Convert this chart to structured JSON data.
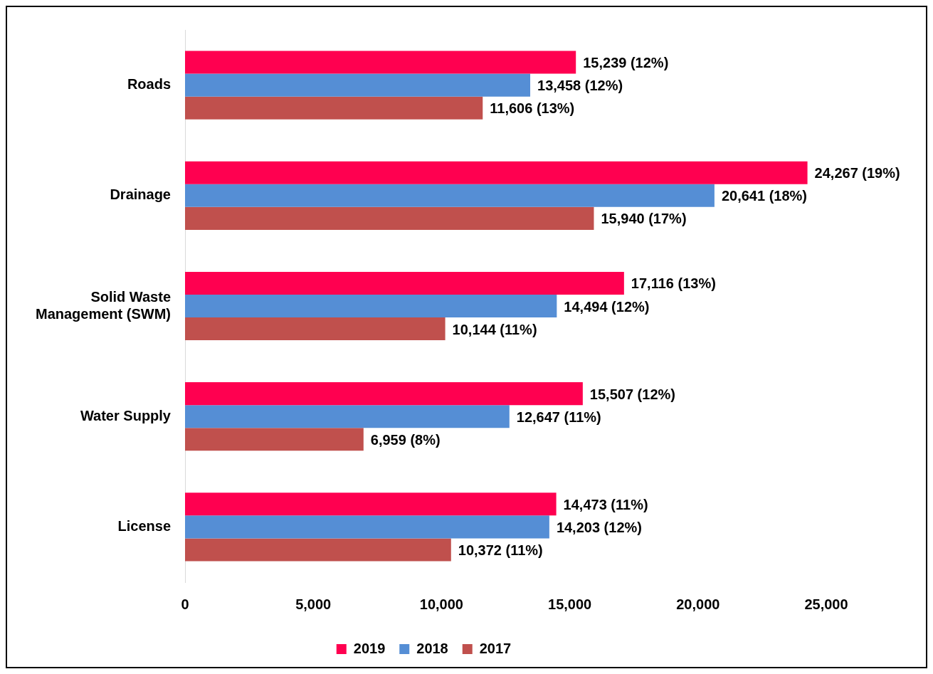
{
  "chart_data": {
    "type": "bar",
    "orientation": "horizontal",
    "categories": [
      "Roads",
      "Drainage",
      "Solid Waste Management (SWM)",
      "Water Supply",
      "License"
    ],
    "series": [
      {
        "name": "2019",
        "color": "#ff0050",
        "values": [
          15239,
          24267,
          17116,
          15507,
          14473
        ],
        "value_labels": [
          "15,239 (12%)",
          "24,267 (19%)",
          "17,116 (13%)",
          "15,507 (12%)",
          "14,473 (11%)"
        ]
      },
      {
        "name": "2018",
        "color": "#558ed5",
        "values": [
          13458,
          20641,
          14494,
          12647,
          14203
        ],
        "value_labels": [
          "13,458 (12%)",
          "20,641 (18%)",
          "14,494 (12%)",
          "12,647 (11%)",
          "14,203 (12%)"
        ]
      },
      {
        "name": "2017",
        "color": "#c0504d",
        "values": [
          11606,
          15940,
          10144,
          6959,
          10372
        ],
        "value_labels": [
          "11,606 (13%)",
          "15,940 (17%)",
          "10,144 (11%)",
          "6,959 (8%)",
          "10,372 (11%)"
        ]
      }
    ],
    "xlim": [
      0,
      25000
    ],
    "xticks": [
      {
        "value": 0,
        "label": "0"
      },
      {
        "value": 5000,
        "label": "5,000"
      },
      {
        "value": 10000,
        "label": "10,000"
      },
      {
        "value": 15000,
        "label": "15,000"
      },
      {
        "value": 20000,
        "label": "20,000"
      },
      {
        "value": 25000,
        "label": "25,000"
      }
    ],
    "grid": false,
    "legend": "bottom"
  }
}
